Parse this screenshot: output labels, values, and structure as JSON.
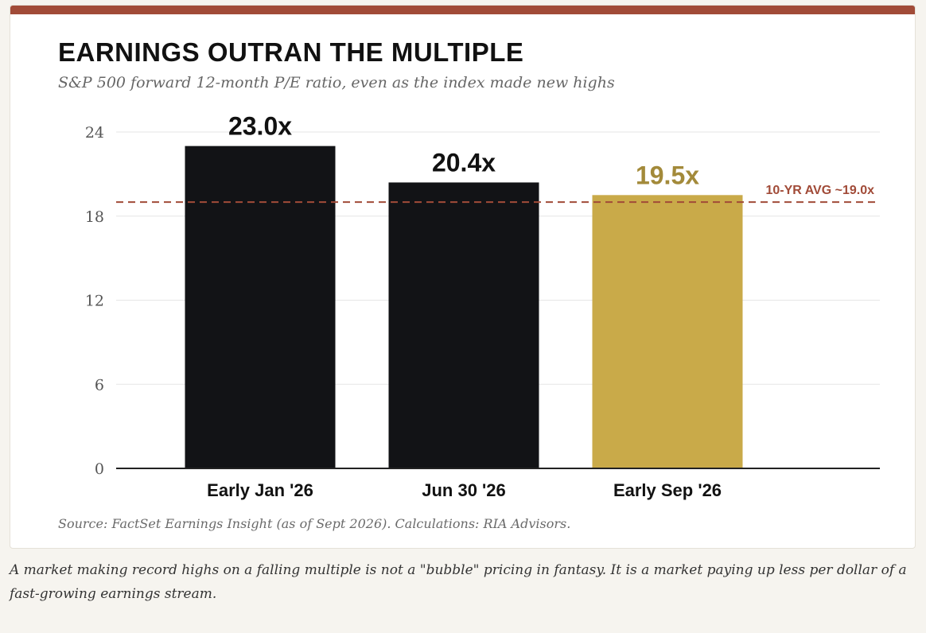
{
  "title": "EARNINGS OUTRAN THE MULTIPLE",
  "subtitle": "S&P 500 forward 12-month P/E ratio, even as the index made new highs",
  "source": "Source: FactSet Earnings Insight (as of Sept 2026). Calculations: RIA Advisors.",
  "caption": "A market making record highs on a falling multiple is not a \"bubble\" pricing in fantasy. It is a market paying up less per dollar of a fast-growing earnings stream.",
  "colors": {
    "accent_bar": "#a14b38",
    "bar_dark": "#121316",
    "bar_highlight": "#c9aa49",
    "highlight_label": "#a38a3a",
    "reference_line": "#a14b38",
    "grid": "#e6e6e6"
  },
  "chart_data": {
    "type": "bar",
    "categories": [
      "Early Jan '26",
      "Jun 30 '26",
      "Early Sep '26"
    ],
    "values": [
      23.0,
      20.4,
      19.5
    ],
    "data_labels": [
      "23.0x",
      "20.4x",
      "19.5x"
    ],
    "highlight_index": 2,
    "ylim": [
      0,
      24
    ],
    "yticks": [
      0,
      6,
      12,
      18,
      24
    ],
    "grid": true,
    "reference_line": {
      "value": 19.0,
      "label": "10-YR AVG ~19.0x"
    }
  }
}
